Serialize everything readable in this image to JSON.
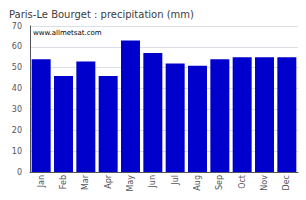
{
  "chart_data": {
    "type": "bar",
    "title": "Paris-Le Bourget : precipitation (mm)",
    "categories": [
      "Jan",
      "Feb",
      "Mar",
      "Apr",
      "May",
      "Jun",
      "Jul",
      "Aug",
      "Sep",
      "Oct",
      "Nov",
      "Dec"
    ],
    "values": [
      54,
      46,
      53,
      46,
      63,
      57,
      52,
      51,
      54,
      55,
      55,
      55
    ],
    "color": "#0000CC",
    "ylim": [
      0,
      70
    ],
    "yticks": [
      0,
      10,
      20,
      30,
      40,
      50,
      60,
      70
    ],
    "grid": true,
    "annotation": "www.allmetsat.com"
  }
}
